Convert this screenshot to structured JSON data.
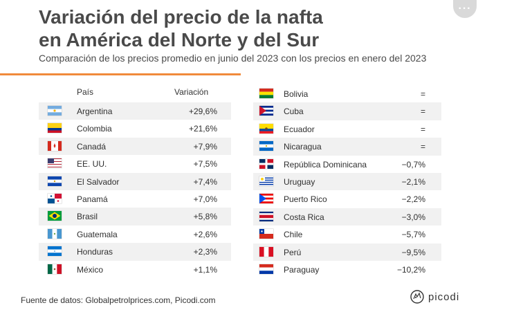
{
  "header": {
    "title_line1": "Variación del precio de la nafta",
    "title_line2": "en América del Norte y del Sur",
    "subtitle": "Comparación de los precios promedio en junio del 2023 con los precios en enero del 2023"
  },
  "menu": {
    "more_label": "···"
  },
  "table_left": {
    "col_country": "País",
    "col_change": "Variación",
    "rows": [
      {
        "country": "Argentina",
        "change": "+29,6%",
        "flag": "flag-argentina-icon"
      },
      {
        "country": "Colombia",
        "change": "+21,6%",
        "flag": "flag-colombia-icon"
      },
      {
        "country": "Canadá",
        "change": "+7,9%",
        "flag": "flag-canada-icon"
      },
      {
        "country": "EE. UU.",
        "change": "+7,5%",
        "flag": "flag-usa-icon"
      },
      {
        "country": "El Salvador",
        "change": "+7,4%",
        "flag": "flag-el-salvador-icon"
      },
      {
        "country": "Panamá",
        "change": "+7,0%",
        "flag": "flag-panama-icon"
      },
      {
        "country": "Brasil",
        "change": "+5,8%",
        "flag": "flag-brazil-icon"
      },
      {
        "country": "Guatemala",
        "change": "+2,6%",
        "flag": "flag-guatemala-icon"
      },
      {
        "country": "Honduras",
        "change": "+2,3%",
        "flag": "flag-honduras-icon"
      },
      {
        "country": "México",
        "change": "+1,1%",
        "flag": "flag-mexico-icon"
      }
    ]
  },
  "table_right": {
    "rows": [
      {
        "country": "Bolivia",
        "change": "=",
        "flag": "flag-bolivia-icon"
      },
      {
        "country": "Cuba",
        "change": "=",
        "flag": "flag-cuba-icon"
      },
      {
        "country": "Ecuador",
        "change": "=",
        "flag": "flag-ecuador-icon"
      },
      {
        "country": "Nicaragua",
        "change": "=",
        "flag": "flag-nicaragua-icon"
      },
      {
        "country": "República Dominicana",
        "change": "−0,7%",
        "flag": "flag-dominican-republic-icon"
      },
      {
        "country": "Uruguay",
        "change": "−2,1%",
        "flag": "flag-uruguay-icon"
      },
      {
        "country": "Puerto Rico",
        "change": "−2,2%",
        "flag": "flag-puerto-rico-icon"
      },
      {
        "country": "Costa Rica",
        "change": "−3,0%",
        "flag": "flag-costa-rica-icon"
      },
      {
        "country": "Chile",
        "change": "−5,7%",
        "flag": "flag-chile-icon"
      },
      {
        "country": "Perú",
        "change": "−9,5%",
        "flag": "flag-peru-icon"
      },
      {
        "country": "Paraguay",
        "change": "−10,2%",
        "flag": "flag-paraguay-icon"
      }
    ]
  },
  "chart_data": {
    "type": "table",
    "title": "Variación del precio de la nafta en América del Norte y del Sur",
    "subtitle": "Comparación de los precios promedio en junio del 2023 con los precios en enero del 2023",
    "columns": [
      "País",
      "Variación"
    ],
    "rows": [
      [
        "Argentina",
        29.6
      ],
      [
        "Colombia",
        21.6
      ],
      [
        "Canadá",
        7.9
      ],
      [
        "EE. UU.",
        7.5
      ],
      [
        "El Salvador",
        7.4
      ],
      [
        "Panamá",
        7.0
      ],
      [
        "Brasil",
        5.8
      ],
      [
        "Guatemala",
        2.6
      ],
      [
        "Honduras",
        2.3
      ],
      [
        "México",
        1.1
      ],
      [
        "Bolivia",
        0
      ],
      [
        "Cuba",
        0
      ],
      [
        "Ecuador",
        0
      ],
      [
        "Nicaragua",
        0
      ],
      [
        "República Dominicana",
        -0.7
      ],
      [
        "Uruguay",
        -2.1
      ],
      [
        "Puerto Rico",
        -2.2
      ],
      [
        "Costa Rica",
        -3.0
      ],
      [
        "Chile",
        -5.7
      ],
      [
        "Perú",
        -9.5
      ],
      [
        "Paraguay",
        -10.2
      ]
    ],
    "unit": "%"
  },
  "footer": {
    "source": "Fuente de datos: Globalpetrolprices.com, Picodi.com",
    "brand": "picodi"
  },
  "colors": {
    "accent": "#f08a3b",
    "row_shade": "#f1f1f1",
    "title": "#4a4a4a"
  }
}
